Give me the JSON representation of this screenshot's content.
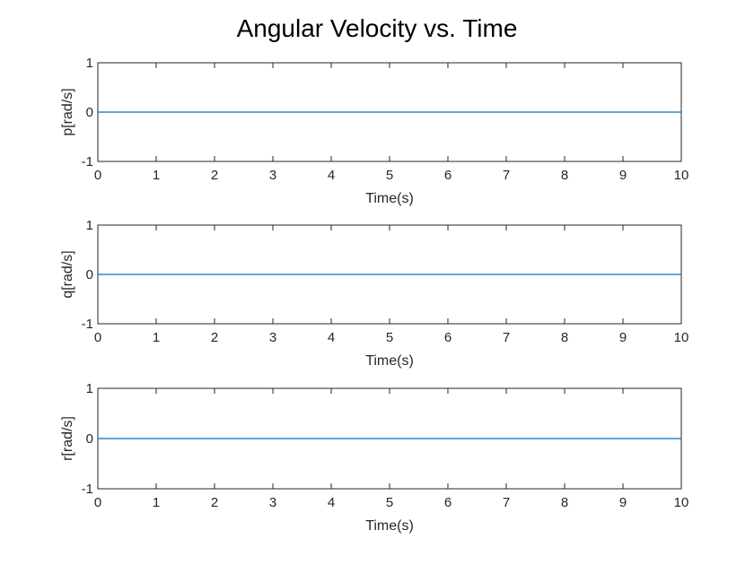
{
  "title": "Angular Velocity vs. Time",
  "colors": {
    "axis": "#262626",
    "series": "#0072BD",
    "background": "#ffffff"
  },
  "chart_data": [
    {
      "type": "line",
      "xlabel": "Time(s)",
      "ylabel": "p[rad/s]",
      "xlim": [
        0,
        10
      ],
      "ylim": [
        -1,
        1
      ],
      "xticks": [
        0,
        1,
        2,
        3,
        4,
        5,
        6,
        7,
        8,
        9,
        10
      ],
      "yticks": [
        -1,
        0,
        1
      ],
      "grid": false,
      "series": [
        {
          "x": [
            0,
            10
          ],
          "y": [
            0,
            0
          ]
        }
      ]
    },
    {
      "type": "line",
      "xlabel": "Time(s)",
      "ylabel": "q[rad/s]",
      "xlim": [
        0,
        10
      ],
      "ylim": [
        -1,
        1
      ],
      "xticks": [
        0,
        1,
        2,
        3,
        4,
        5,
        6,
        7,
        8,
        9,
        10
      ],
      "yticks": [
        -1,
        0,
        1
      ],
      "grid": false,
      "series": [
        {
          "x": [
            0,
            10
          ],
          "y": [
            0,
            0
          ]
        }
      ]
    },
    {
      "type": "line",
      "xlabel": "Time(s)",
      "ylabel": "r[rad/s]",
      "xlim": [
        0,
        10
      ],
      "ylim": [
        -1,
        1
      ],
      "xticks": [
        0,
        1,
        2,
        3,
        4,
        5,
        6,
        7,
        8,
        9,
        10
      ],
      "yticks": [
        -1,
        0,
        1
      ],
      "grid": false,
      "series": [
        {
          "x": [
            0,
            10
          ],
          "y": [
            0,
            0
          ]
        }
      ]
    }
  ]
}
